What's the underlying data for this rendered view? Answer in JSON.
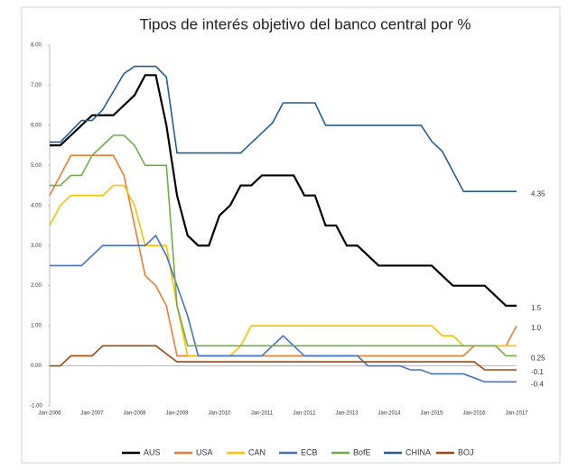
{
  "chart_data": {
    "type": "line",
    "title": "Tipos de interés objetivo del banco central por %",
    "categories": [
      "Jan-2006",
      null,
      null,
      null,
      "Jan-2007",
      null,
      null,
      null,
      "Jan-2008",
      null,
      null,
      null,
      "Jan-2009",
      null,
      null,
      null,
      "Jan-2010",
      null,
      null,
      null,
      "Jan-2011",
      null,
      null,
      null,
      "Jan-2012",
      null,
      null,
      null,
      "Jan-2013",
      null,
      null,
      null,
      "Jan-2014",
      null,
      null,
      null,
      "Jan-2015",
      null,
      null,
      null,
      "Jan-2016",
      null,
      null,
      null,
      "Jan-2017"
    ],
    "ylim": [
      -1,
      8
    ],
    "yticks": [
      {
        "value": -1,
        "label": "-1.00"
      },
      {
        "value": 0,
        "label": "0.00"
      },
      {
        "value": 1,
        "label": "1.00"
      },
      {
        "value": 2,
        "label": "2.00"
      },
      {
        "value": 3,
        "label": "3.00"
      },
      {
        "value": 4,
        "label": "4.00"
      },
      {
        "value": 5,
        "label": "5.00"
      },
      {
        "value": 6,
        "label": "6.00"
      },
      {
        "value": 7,
        "label": "7.00"
      },
      {
        "value": 8,
        "label": "8.00"
      }
    ],
    "legend": "bottom",
    "series": [
      {
        "name": "AUS",
        "color": "#000000",
        "end_label": "1.5",
        "values": [
          5.5,
          5.5,
          5.75,
          6.0,
          6.25,
          6.25,
          6.25,
          6.5,
          6.75,
          7.25,
          7.25,
          6.0,
          4.25,
          3.25,
          3.0,
          3.0,
          3.75,
          4.0,
          4.5,
          4.5,
          4.75,
          4.75,
          4.75,
          4.75,
          4.25,
          4.25,
          3.5,
          3.5,
          3.0,
          3.0,
          2.75,
          2.5,
          2.5,
          2.5,
          2.5,
          2.5,
          2.5,
          2.25,
          2.0,
          2.0,
          2.0,
          2.0,
          1.75,
          1.5,
          1.5
        ]
      },
      {
        "name": "USA",
        "color": "#ed7d31",
        "end_label": "1.0",
        "values": [
          4.25,
          4.75,
          5.25,
          5.25,
          5.25,
          5.25,
          5.25,
          4.75,
          3.5,
          2.25,
          2.0,
          1.5,
          0.25,
          0.25,
          0.25,
          0.25,
          0.25,
          0.25,
          0.25,
          0.25,
          0.25,
          0.25,
          0.25,
          0.25,
          0.25,
          0.25,
          0.25,
          0.25,
          0.25,
          0.25,
          0.25,
          0.25,
          0.25,
          0.25,
          0.25,
          0.25,
          0.25,
          0.25,
          0.25,
          0.25,
          0.5,
          0.5,
          0.5,
          0.5,
          1.0
        ]
      },
      {
        "name": "CAN",
        "color": "#ffc000",
        "values": [
          3.5,
          4.0,
          4.25,
          4.25,
          4.25,
          4.25,
          4.5,
          4.5,
          4.0,
          3.0,
          3.0,
          3.0,
          1.5,
          0.25,
          0.25,
          0.25,
          0.25,
          0.25,
          0.5,
          1.0,
          1.0,
          1.0,
          1.0,
          1.0,
          1.0,
          1.0,
          1.0,
          1.0,
          1.0,
          1.0,
          1.0,
          1.0,
          1.0,
          1.0,
          1.0,
          1.0,
          1.0,
          0.75,
          0.75,
          0.5,
          0.5,
          0.5,
          0.5,
          0.5,
          0.5
        ]
      },
      {
        "name": "ECB",
        "color": "#4472c4",
        "end_label": "-0.4",
        "values": [
          2.5,
          2.5,
          2.5,
          2.5,
          2.75,
          3.0,
          3.0,
          3.0,
          3.0,
          3.0,
          3.25,
          2.75,
          2.0,
          1.25,
          0.25,
          0.25,
          0.25,
          0.25,
          0.25,
          0.25,
          0.25,
          0.5,
          0.75,
          0.5,
          0.25,
          0.25,
          0.25,
          0.25,
          0.25,
          0.25,
          0.0,
          0.0,
          0.0,
          0.0,
          -0.1,
          -0.1,
          -0.2,
          -0.2,
          -0.2,
          -0.2,
          -0.3,
          -0.4,
          -0.4,
          -0.4,
          -0.4
        ]
      },
      {
        "name": "BofE",
        "color": "#70ad47",
        "end_label": "0.25",
        "values": [
          4.5,
          4.5,
          4.75,
          4.75,
          5.25,
          5.5,
          5.75,
          5.75,
          5.5,
          5.0,
          5.0,
          5.0,
          1.5,
          0.5,
          0.5,
          0.5,
          0.5,
          0.5,
          0.5,
          0.5,
          0.5,
          0.5,
          0.5,
          0.5,
          0.5,
          0.5,
          0.5,
          0.5,
          0.5,
          0.5,
          0.5,
          0.5,
          0.5,
          0.5,
          0.5,
          0.5,
          0.5,
          0.5,
          0.5,
          0.5,
          0.5,
          0.5,
          0.5,
          0.25,
          0.25
        ]
      },
      {
        "name": "CHINA",
        "color": "#255e91",
        "end_label": "4.35",
        "values": [
          5.58,
          5.58,
          5.85,
          6.12,
          6.12,
          6.39,
          6.84,
          7.29,
          7.47,
          7.47,
          7.47,
          7.2,
          5.31,
          5.31,
          5.31,
          5.31,
          5.31,
          5.31,
          5.31,
          5.56,
          5.81,
          6.06,
          6.56,
          6.56,
          6.56,
          6.56,
          6.0,
          6.0,
          6.0,
          6.0,
          6.0,
          6.0,
          6.0,
          6.0,
          6.0,
          6.0,
          5.6,
          5.35,
          4.85,
          4.35,
          4.35,
          4.35,
          4.35,
          4.35,
          4.35
        ]
      },
      {
        "name": "BOJ",
        "color": "#9e480e",
        "end_label": "-0.1",
        "values": [
          0,
          0,
          0.25,
          0.25,
          0.25,
          0.5,
          0.5,
          0.5,
          0.5,
          0.5,
          0.5,
          0.3,
          0.1,
          0.1,
          0.1,
          0.1,
          0.1,
          0.1,
          0.1,
          0.1,
          0.1,
          0.1,
          0.1,
          0.1,
          0.1,
          0.1,
          0.1,
          0.1,
          0.1,
          0.1,
          0.1,
          0.1,
          0.1,
          0.1,
          0.1,
          0.1,
          0.1,
          0.1,
          0.1,
          0.1,
          0.1,
          -0.1,
          -0.1,
          -0.1,
          -0.1
        ]
      }
    ]
  }
}
